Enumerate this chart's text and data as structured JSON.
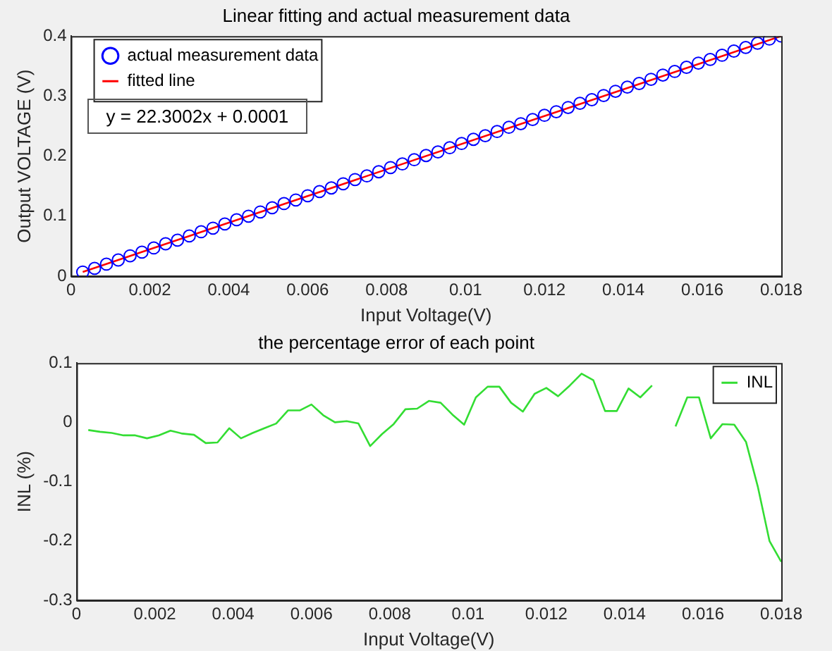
{
  "chart_data": [
    {
      "type": "scatter",
      "title": "Linear fitting and actual measurement data",
      "xlabel": "Input Voltage(V)",
      "ylabel": "Output VOLTAGE (V)",
      "x": [
        0.0003,
        0.0006,
        0.0009,
        0.0012,
        0.0015,
        0.0018,
        0.0021,
        0.0024,
        0.0027,
        0.003,
        0.0033,
        0.0036,
        0.0039,
        0.0042,
        0.0045,
        0.0048,
        0.0051,
        0.0054,
        0.0057,
        0.006,
        0.0063,
        0.0066,
        0.0069,
        0.0072,
        0.0075,
        0.0078,
        0.0081,
        0.0084,
        0.0087,
        0.009,
        0.0093,
        0.0096,
        0.0099,
        0.0102,
        0.0105,
        0.0108,
        0.0111,
        0.0114,
        0.0117,
        0.012,
        0.0123,
        0.0126,
        0.0129,
        0.0132,
        0.0135,
        0.0138,
        0.0141,
        0.0144,
        0.0147,
        0.015,
        0.0153,
        0.0156,
        0.0159,
        0.0162,
        0.0165,
        0.0168,
        0.0171,
        0.0174,
        0.0177,
        0.018
      ],
      "series": [
        {
          "name": "actual measurement data",
          "color": "#0000ff",
          "marker": "circle",
          "values": [
            0.007,
            0.013,
            0.02,
            0.027,
            0.034,
            0.04,
            0.047,
            0.054,
            0.06,
            0.067,
            0.074,
            0.08,
            0.087,
            0.094,
            0.1,
            0.107,
            0.114,
            0.121,
            0.127,
            0.134,
            0.141,
            0.147,
            0.154,
            0.161,
            0.167,
            0.174,
            0.181,
            0.187,
            0.194,
            0.201,
            0.207,
            0.214,
            0.221,
            0.228,
            0.234,
            0.241,
            0.248,
            0.254,
            0.261,
            0.268,
            0.274,
            0.281,
            0.288,
            0.294,
            0.301,
            0.308,
            0.315,
            0.321,
            0.328,
            0.335,
            0.341,
            0.348,
            0.355,
            0.361,
            0.368,
            0.375,
            0.381,
            0.388,
            0.395,
            0.4
          ]
        },
        {
          "name": "fitted line",
          "type": "line",
          "color": "#ff0000",
          "marker": "none",
          "x": [
            0.0003,
            0.018
          ],
          "values": [
            0.007,
            0.4
          ]
        }
      ],
      "annotations": [
        "y = 22.3002x + 0.0001"
      ],
      "legend": "top left",
      "grid": false,
      "xlim": [
        0,
        0.018
      ],
      "xticks": [
        0,
        0.002,
        0.004,
        0.006,
        0.008,
        0.01,
        0.012,
        0.014,
        0.016,
        0.018
      ],
      "ylim": [
        0,
        0.4
      ],
      "yticks": [
        0,
        0.1,
        0.2,
        0.3,
        0.4
      ]
    },
    {
      "type": "line",
      "title": "the percentage error of each point",
      "xlabel": "Input Voltage(V)",
      "ylabel": "INL (%)",
      "x": [
        0.0003,
        0.0006,
        0.0009,
        0.0012,
        0.0015,
        0.0018,
        0.0021,
        0.0024,
        0.0027,
        0.003,
        0.0033,
        0.0036,
        0.0039,
        0.0042,
        0.0045,
        0.0048,
        0.0051,
        0.0054,
        0.0057,
        0.006,
        0.0063,
        0.0066,
        0.0069,
        0.0072,
        0.0075,
        0.0078,
        0.0081,
        0.0084,
        0.0087,
        0.009,
        0.0093,
        0.0096,
        0.0099,
        0.0102,
        0.0105,
        0.0108,
        0.0111,
        0.0114,
        0.0117,
        0.012,
        0.0123,
        0.0126,
        0.0129,
        0.0132,
        0.0135,
        0.0138,
        0.0141,
        0.0144,
        0.0147,
        0.015,
        0.0153,
        0.0156,
        0.0159,
        0.0162,
        0.0165,
        0.0168,
        0.0171,
        0.0174,
        0.0177,
        0.018
      ],
      "series": [
        {
          "name": "INL",
          "color": "#33dd33",
          "values": [
            -0.013,
            -0.016,
            -0.018,
            -0.022,
            -0.022,
            -0.027,
            -0.022,
            -0.014,
            -0.019,
            -0.021,
            -0.035,
            -0.034,
            -0.01,
            -0.027,
            -0.018,
            -0.01,
            -0.002,
            0.02,
            0.02,
            0.03,
            0.012,
            0.0,
            0.002,
            -0.002,
            -0.04,
            -0.02,
            -0.003,
            0.022,
            0.023,
            0.036,
            0.033,
            0.013,
            -0.004,
            0.042,
            0.06,
            0.06,
            0.033,
            0.018,
            0.048,
            0.058,
            0.044,
            0.062,
            0.082,
            0.071,
            0.019,
            0.019,
            0.057,
            0.042,
            0.062,
            null,
            -0.007,
            0.042,
            0.042,
            -0.027,
            -0.003,
            -0.004,
            -0.033,
            -0.108,
            -0.2,
            -0.235
          ]
        }
      ],
      "legend": "top right",
      "grid": false,
      "xlim": [
        0,
        0.018
      ],
      "xticks": [
        0,
        0.002,
        0.004,
        0.006,
        0.008,
        0.01,
        0.012,
        0.014,
        0.016,
        0.018
      ],
      "ylim": [
        -0.3,
        0.1
      ],
      "yticks": [
        -0.3,
        -0.2,
        -0.1,
        0,
        0.1
      ]
    }
  ]
}
